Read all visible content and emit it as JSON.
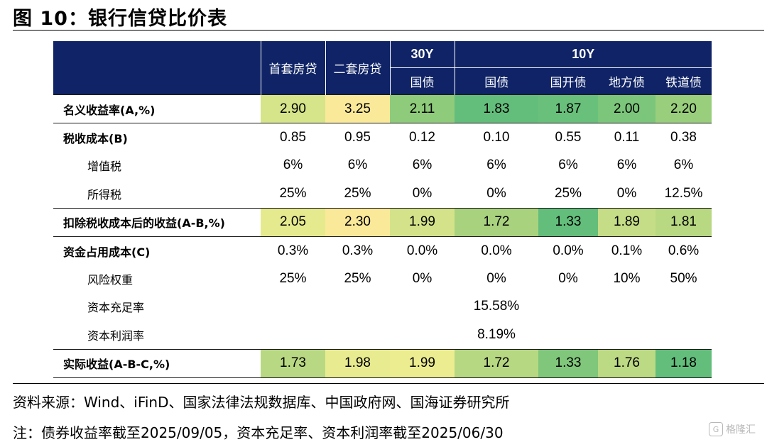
{
  "title": "图 10：银行信贷比价表",
  "header": {
    "row1": [
      "首套房贷",
      "二套房贷",
      "30Y",
      "10Y"
    ],
    "row2": [
      "国债",
      "国债",
      "国开债",
      "地方债",
      "铁道债"
    ]
  },
  "rows": [
    {
      "label": "名义收益率(A,%)",
      "indent": false,
      "key": true,
      "values": [
        "2.90",
        "3.25",
        "2.11",
        "1.83",
        "1.87",
        "2.00",
        "2.20"
      ],
      "colors": [
        "#d6e48a",
        "#fbe99a",
        "#8ecb7a",
        "#63be7b",
        "#68c07b",
        "#7bc67b",
        "#99ce7c"
      ]
    },
    {
      "label": "税收成本(B)",
      "indent": false,
      "key": false,
      "values": [
        "0.85",
        "0.95",
        "0.12",
        "0.10",
        "0.55",
        "0.11",
        "0.38"
      ]
    },
    {
      "label": "增值税",
      "indent": true,
      "key": false,
      "values": [
        "6%",
        "6%",
        "6%",
        "6%",
        "6%",
        "6%",
        "6%"
      ]
    },
    {
      "label": "所得税",
      "indent": true,
      "key": false,
      "values": [
        "25%",
        "25%",
        "0%",
        "0%",
        "25%",
        "0%",
        "12.5%"
      ]
    },
    {
      "label": "扣除税收成本后的收益(A-B,%)",
      "indent": false,
      "key": true,
      "values": [
        "2.05",
        "2.30",
        "1.99",
        "1.72",
        "1.33",
        "1.89",
        "1.81"
      ],
      "colors": [
        "#e6ea8e",
        "#fbe99a",
        "#d4e38a",
        "#a9d27e",
        "#63be7b",
        "#c5dd86",
        "#b8d882"
      ]
    },
    {
      "label": "资金占用成本(C)",
      "indent": false,
      "key": false,
      "values": [
        "0.3%",
        "0.3%",
        "0.0%",
        "0.0%",
        "0.0%",
        "0.1%",
        "0.6%"
      ]
    },
    {
      "label": "风险权重",
      "indent": true,
      "key": false,
      "values": [
        "25%",
        "25%",
        "0%",
        "0%",
        "0%",
        "10%",
        "50%"
      ]
    },
    {
      "label": "资本充足率",
      "indent": true,
      "key": false,
      "values": [
        "",
        "",
        "",
        "15.58%",
        "",
        "",
        ""
      ]
    },
    {
      "label": "资本利润率",
      "indent": true,
      "key": false,
      "values": [
        "",
        "",
        "",
        "8.19%",
        "",
        "",
        ""
      ]
    },
    {
      "label": "实际收益(A-B-C,%)",
      "indent": false,
      "key": true,
      "values": [
        "1.73",
        "1.98",
        "1.99",
        "1.72",
        "1.33",
        "1.76",
        "1.18"
      ],
      "colors": [
        "#b9d883",
        "#e8eb90",
        "#ecec91",
        "#b7d882",
        "#80c77b",
        "#bcd984",
        "#63be7b"
      ]
    }
  ],
  "source_line": "资料来源：Wind、iFinD、国家法律法规数据库、中国政府网、国海证券研究所",
  "note_line": "注：债券收益率截至2025/09/05，资本充足率、资本利润率截至2025/06/30",
  "watermark": "格隆汇"
}
